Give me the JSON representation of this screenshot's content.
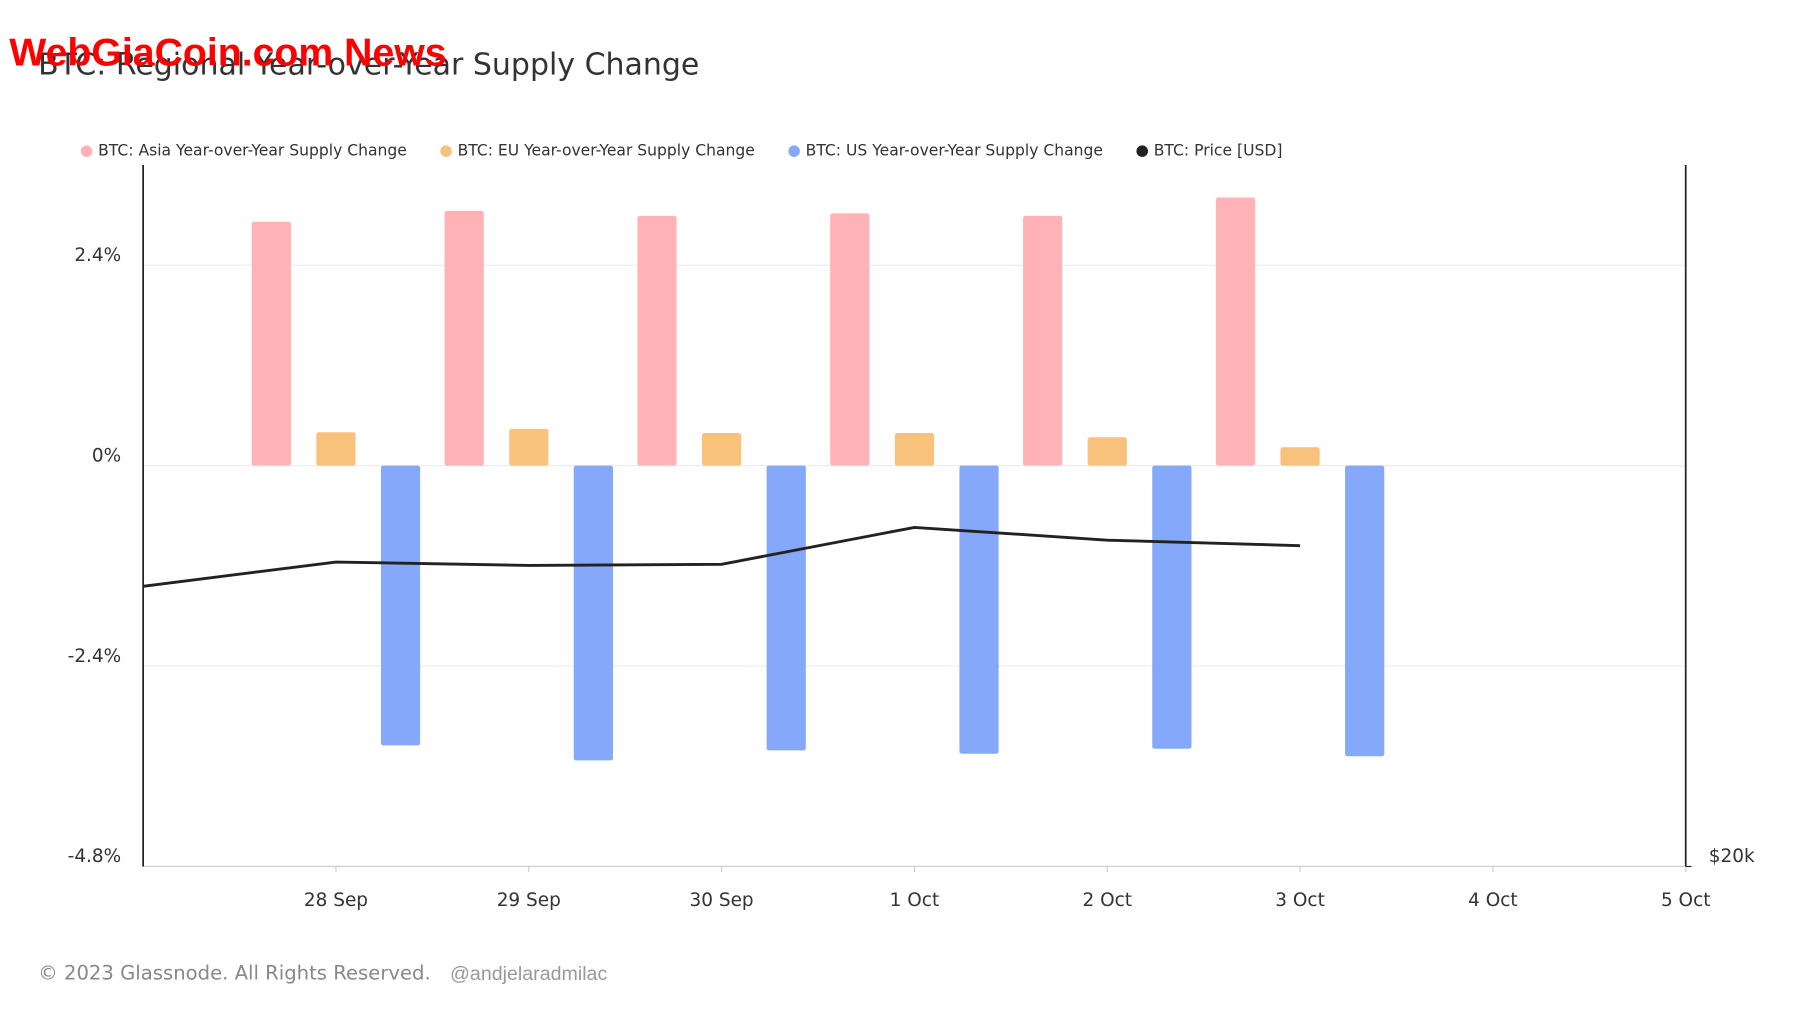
{
  "chart_data": {
    "type": "bar",
    "watermark": "WebGiaCoin.com News",
    "title": "BTC: Regional Year-over-Year Supply Change",
    "categories": [
      null,
      "28 Sep",
      "29 Sep",
      "30 Sep",
      "1 Oct",
      "2 Oct",
      "3 Oct",
      "4 Oct",
      "5 Oct"
    ],
    "series": [
      {
        "name": "BTC: Asia Year-over-Year Supply Change",
        "color": "#ffb3b6",
        "type": "bar",
        "values": [
          null,
          2.92,
          3.05,
          2.99,
          3.02,
          2.99,
          3.21,
          null,
          null
        ]
      },
      {
        "name": "BTC: EU Year-over-Year Supply Change",
        "color": "#f9c27c",
        "type": "bar",
        "values": [
          null,
          0.4,
          0.44,
          0.39,
          0.39,
          0.34,
          0.22,
          null,
          null
        ]
      },
      {
        "name": "BTC: US Year-over-Year Supply Change",
        "color": "#86a8fb",
        "type": "bar",
        "values": [
          null,
          -3.35,
          -3.53,
          -3.41,
          -3.45,
          -3.39,
          -3.48,
          null,
          null
        ]
      },
      {
        "name": "BTC: Price [USD]",
        "color": "#222222",
        "type": "line",
        "axis": "y2",
        "values": [
          26380,
          27020,
          26930,
          26960,
          27960,
          27610,
          27460,
          null,
          null
        ]
      }
    ],
    "ylim": [
      -4.8,
      3.6
    ],
    "yticks": [
      {
        "value": 2.4,
        "label": "2.4%"
      },
      {
        "value": 0,
        "label": "0%"
      },
      {
        "value": -2.4,
        "label": "-2.4%"
      },
      {
        "value": -4.8,
        "label": "-4.8%"
      }
    ],
    "y2lim": [
      20000,
      40000
    ],
    "y2ticks": [
      {
        "value": 20000,
        "label": "$20k"
      }
    ],
    "y2log": true,
    "grid": true,
    "footer": "© 2023 Glassnode. All Rights Reserved.",
    "author": "@andjelaradmilac"
  }
}
